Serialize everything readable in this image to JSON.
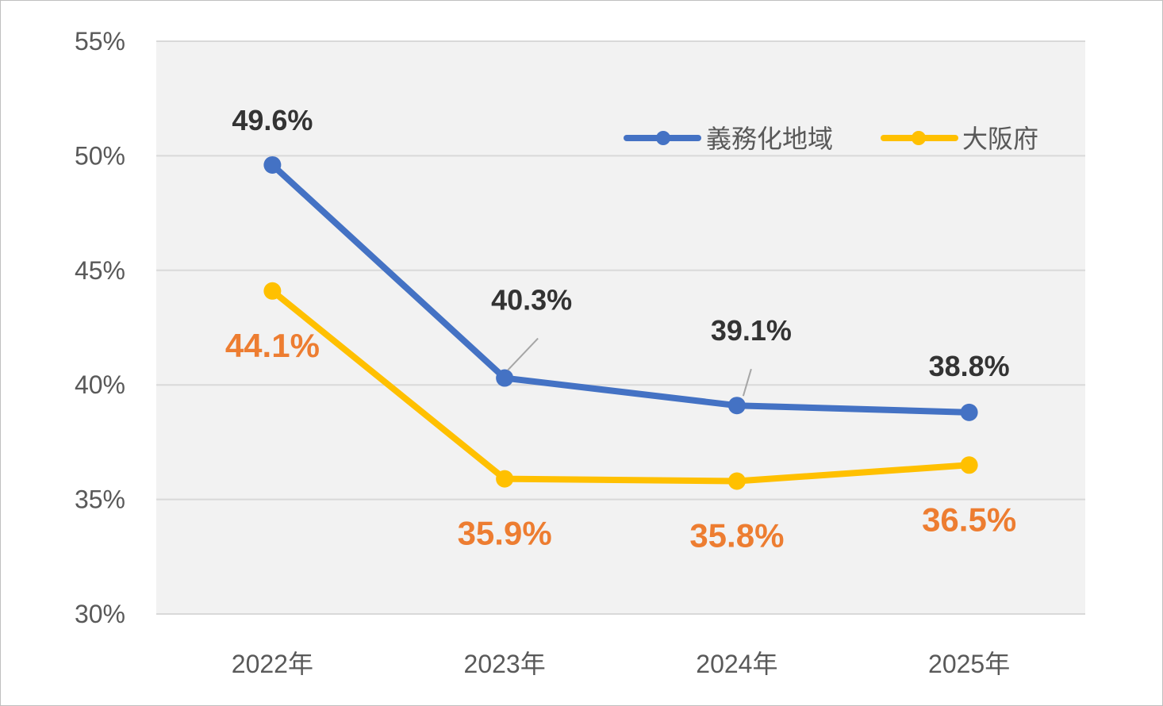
{
  "chart_data": {
    "type": "line",
    "categories": [
      "2022年",
      "2023年",
      "2024年",
      "2025年"
    ],
    "series": [
      {
        "name": "義務化地域",
        "values": [
          49.6,
          40.3,
          39.1,
          38.8
        ],
        "labels": [
          "49.6%",
          "40.3%",
          "39.1%",
          "38.8%"
        ],
        "color": "#4472c4",
        "label_color": "#333333"
      },
      {
        "name": "大阪府",
        "values": [
          44.1,
          35.9,
          35.8,
          36.5
        ],
        "labels": [
          "44.1%",
          "35.9%",
          "35.8%",
          "36.5%"
        ],
        "color": "#ffc000",
        "label_color": "#ed7d31"
      }
    ],
    "ylim": [
      30,
      55
    ],
    "y_ticks": [
      "30%",
      "35%",
      "40%",
      "45%",
      "50%",
      "55%"
    ],
    "grid": true,
    "legend_position": "top-right",
    "plot_background": "#f2f2f2"
  }
}
